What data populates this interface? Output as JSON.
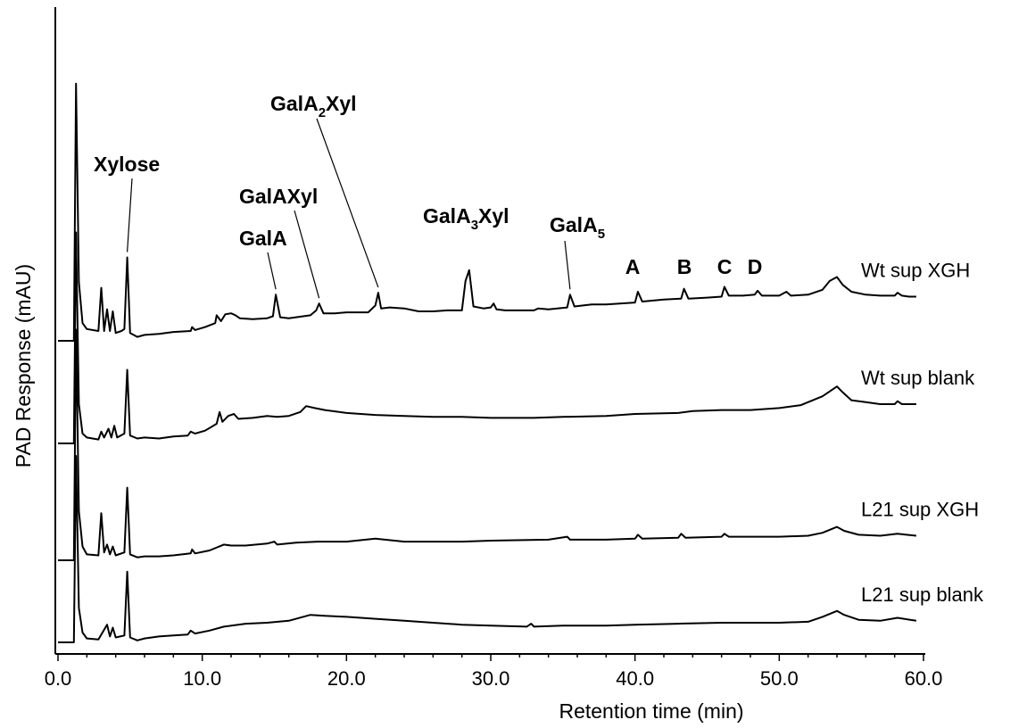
{
  "chart_data": {
    "type": "line",
    "title": "",
    "xlabel": "Retention time (min)",
    "ylabel": "PAD Response (mAU)",
    "xlim": [
      0,
      60
    ],
    "x_ticks": [
      {
        "value": 0,
        "label": "0.0"
      },
      {
        "value": 10,
        "label": "10.0"
      },
      {
        "value": 20,
        "label": "20.0"
      },
      {
        "value": 30,
        "label": "30.0"
      },
      {
        "value": 40,
        "label": "40.0"
      },
      {
        "value": 50,
        "label": "50.0"
      },
      {
        "value": 60,
        "label": "60.0"
      }
    ],
    "series": [
      {
        "name": "Wt sup XGH",
        "color": "#000000",
        "points": [
          [
            0.0,
            0
          ],
          [
            1.1,
            0
          ],
          [
            1.25,
            262
          ],
          [
            1.45,
            60
          ],
          [
            1.7,
            18
          ],
          [
            2.0,
            12
          ],
          [
            2.8,
            10
          ],
          [
            3.0,
            54
          ],
          [
            3.2,
            10
          ],
          [
            3.4,
            32
          ],
          [
            3.6,
            10
          ],
          [
            3.8,
            30
          ],
          [
            4.0,
            8
          ],
          [
            4.4,
            10
          ],
          [
            4.6,
            12
          ],
          [
            4.8,
            85
          ],
          [
            5.0,
            8
          ],
          [
            5.5,
            4
          ],
          [
            6.0,
            6
          ],
          [
            7.0,
            7
          ],
          [
            8.0,
            9
          ],
          [
            9.2,
            10
          ],
          [
            9.3,
            14
          ],
          [
            9.5,
            11
          ],
          [
            10.2,
            14
          ],
          [
            10.9,
            18
          ],
          [
            11.0,
            26
          ],
          [
            11.3,
            20
          ],
          [
            11.6,
            27
          ],
          [
            12.0,
            28
          ],
          [
            12.3,
            26
          ],
          [
            12.6,
            23
          ],
          [
            13.5,
            22
          ],
          [
            14.5,
            23
          ],
          [
            14.9,
            25
          ],
          [
            15.1,
            47
          ],
          [
            15.4,
            24
          ],
          [
            16.0,
            23
          ],
          [
            16.5,
            24
          ],
          [
            17.5,
            26
          ],
          [
            17.9,
            31
          ],
          [
            18.1,
            38
          ],
          [
            18.4,
            28
          ],
          [
            19.2,
            28
          ],
          [
            20.0,
            29
          ],
          [
            21.5,
            29
          ],
          [
            22.0,
            36
          ],
          [
            22.2,
            49
          ],
          [
            22.4,
            33
          ],
          [
            23.0,
            34
          ],
          [
            24.0,
            33
          ],
          [
            25.0,
            30
          ],
          [
            26.0,
            30
          ],
          [
            27.0,
            31
          ],
          [
            28.0,
            31
          ],
          [
            28.25,
            61
          ],
          [
            28.5,
            72
          ],
          [
            28.8,
            35
          ],
          [
            29.5,
            33
          ],
          [
            30.0,
            34
          ],
          [
            30.2,
            38
          ],
          [
            30.4,
            32
          ],
          [
            31.0,
            31
          ],
          [
            32.0,
            31
          ],
          [
            33.0,
            31
          ],
          [
            33.3,
            33
          ],
          [
            34.0,
            32
          ],
          [
            35.3,
            34
          ],
          [
            35.5,
            47
          ],
          [
            35.8,
            35
          ],
          [
            37.0,
            37
          ],
          [
            38.0,
            37
          ],
          [
            40.0,
            39
          ],
          [
            40.2,
            50
          ],
          [
            40.5,
            40
          ],
          [
            42.0,
            42
          ],
          [
            43.2,
            43
          ],
          [
            43.4,
            53
          ],
          [
            43.7,
            43
          ],
          [
            45.0,
            44
          ],
          [
            46.0,
            45
          ],
          [
            46.2,
            55
          ],
          [
            46.5,
            46
          ],
          [
            47.5,
            46
          ],
          [
            48.3,
            47
          ],
          [
            48.5,
            51
          ],
          [
            48.8,
            46
          ],
          [
            50.0,
            46
          ],
          [
            50.5,
            50
          ],
          [
            50.8,
            46
          ],
          [
            52.0,
            47
          ],
          [
            53.0,
            52
          ],
          [
            53.5,
            61
          ],
          [
            54.0,
            65
          ],
          [
            54.4,
            57
          ],
          [
            55.0,
            50
          ],
          [
            56.0,
            47
          ],
          [
            57.0,
            46
          ],
          [
            58.0,
            46
          ],
          [
            58.2,
            49
          ],
          [
            58.5,
            46
          ],
          [
            59.0,
            45
          ],
          [
            59.5,
            45
          ]
        ]
      },
      {
        "name": "Wt sup blank",
        "color": "#000000",
        "points": [
          [
            0.0,
            0
          ],
          [
            1.1,
            0
          ],
          [
            1.25,
            215
          ],
          [
            1.45,
            40
          ],
          [
            1.7,
            10
          ],
          [
            2.0,
            6
          ],
          [
            2.8,
            4
          ],
          [
            3.0,
            12
          ],
          [
            3.2,
            6
          ],
          [
            3.5,
            15
          ],
          [
            3.7,
            6
          ],
          [
            3.9,
            18
          ],
          [
            4.1,
            6
          ],
          [
            4.6,
            10
          ],
          [
            4.8,
            75
          ],
          [
            5.0,
            8
          ],
          [
            5.5,
            5
          ],
          [
            6.0,
            6
          ],
          [
            7.0,
            5
          ],
          [
            8.0,
            7
          ],
          [
            9.0,
            8
          ],
          [
            9.2,
            12
          ],
          [
            9.5,
            10
          ],
          [
            10.2,
            13
          ],
          [
            11.0,
            20
          ],
          [
            11.2,
            32
          ],
          [
            11.4,
            22
          ],
          [
            11.8,
            28
          ],
          [
            12.2,
            30
          ],
          [
            12.5,
            25
          ],
          [
            13.5,
            26
          ],
          [
            14.5,
            28
          ],
          [
            15.2,
            27
          ],
          [
            16.0,
            28
          ],
          [
            16.8,
            32
          ],
          [
            17.2,
            38
          ],
          [
            17.8,
            36
          ],
          [
            18.5,
            34
          ],
          [
            20.0,
            31
          ],
          [
            22.0,
            29
          ],
          [
            24.0,
            28
          ],
          [
            26.0,
            27
          ],
          [
            28.0,
            27
          ],
          [
            30.0,
            26
          ],
          [
            33.0,
            26
          ],
          [
            35.0,
            27
          ],
          [
            38.0,
            28
          ],
          [
            40.0,
            30
          ],
          [
            43.0,
            31
          ],
          [
            44.0,
            33
          ],
          [
            46.0,
            34
          ],
          [
            48.0,
            34
          ],
          [
            50.0,
            36
          ],
          [
            51.5,
            39
          ],
          [
            53.0,
            48
          ],
          [
            54.0,
            58
          ],
          [
            54.4,
            52
          ],
          [
            55.0,
            44
          ],
          [
            56.0,
            42
          ],
          [
            57.0,
            40
          ],
          [
            58.0,
            40
          ],
          [
            58.2,
            43
          ],
          [
            58.5,
            40
          ],
          [
            59.5,
            40
          ]
        ]
      },
      {
        "name": "L21 sup XGH",
        "color": "#000000",
        "points": [
          [
            0.0,
            0
          ],
          [
            1.1,
            0
          ],
          [
            1.25,
            235
          ],
          [
            1.45,
            50
          ],
          [
            1.7,
            14
          ],
          [
            2.0,
            6
          ],
          [
            2.8,
            5
          ],
          [
            3.0,
            48
          ],
          [
            3.2,
            8
          ],
          [
            3.4,
            16
          ],
          [
            3.6,
            6
          ],
          [
            3.8,
            14
          ],
          [
            4.0,
            5
          ],
          [
            4.6,
            8
          ],
          [
            4.8,
            74
          ],
          [
            5.0,
            6
          ],
          [
            5.5,
            3
          ],
          [
            6.0,
            4
          ],
          [
            7.0,
            4
          ],
          [
            8.0,
            5
          ],
          [
            9.2,
            7
          ],
          [
            9.3,
            11
          ],
          [
            9.5,
            7
          ],
          [
            10.5,
            10
          ],
          [
            11.5,
            16
          ],
          [
            12.0,
            15
          ],
          [
            13.0,
            15
          ],
          [
            14.5,
            17
          ],
          [
            15.0,
            19
          ],
          [
            15.2,
            16
          ],
          [
            16.5,
            18
          ],
          [
            18.0,
            19
          ],
          [
            20.0,
            19
          ],
          [
            22.0,
            22
          ],
          [
            24.0,
            19
          ],
          [
            28.0,
            19
          ],
          [
            30.0,
            20
          ],
          [
            34.0,
            21
          ],
          [
            35.3,
            24
          ],
          [
            35.5,
            21
          ],
          [
            38.0,
            21
          ],
          [
            40.0,
            22
          ],
          [
            40.2,
            26
          ],
          [
            40.5,
            22
          ],
          [
            43.0,
            23
          ],
          [
            43.2,
            27
          ],
          [
            43.5,
            23
          ],
          [
            46.0,
            24
          ],
          [
            46.2,
            27
          ],
          [
            46.5,
            24
          ],
          [
            48.0,
            24
          ],
          [
            50.0,
            24
          ],
          [
            52.0,
            25
          ],
          [
            53.0,
            28
          ],
          [
            54.0,
            34
          ],
          [
            54.5,
            30
          ],
          [
            55.5,
            26
          ],
          [
            57.0,
            25
          ],
          [
            58.2,
            27
          ],
          [
            59.5,
            25
          ]
        ]
      },
      {
        "name": "L21 sup blank",
        "color": "#000000",
        "points": [
          [
            0.0,
            0
          ],
          [
            1.1,
            0
          ],
          [
            1.25,
            190
          ],
          [
            1.45,
            35
          ],
          [
            1.7,
            10
          ],
          [
            2.0,
            4
          ],
          [
            2.8,
            3
          ],
          [
            3.4,
            18
          ],
          [
            3.6,
            6
          ],
          [
            3.8,
            15
          ],
          [
            4.0,
            5
          ],
          [
            4.6,
            7
          ],
          [
            4.8,
            72
          ],
          [
            5.0,
            5
          ],
          [
            5.5,
            2
          ],
          [
            6.0,
            4
          ],
          [
            7.0,
            6
          ],
          [
            8.0,
            7
          ],
          [
            9.0,
            8
          ],
          [
            9.2,
            12
          ],
          [
            9.5,
            9
          ],
          [
            10.5,
            12
          ],
          [
            11.5,
            16
          ],
          [
            13.0,
            19
          ],
          [
            14.5,
            20
          ],
          [
            16.0,
            22
          ],
          [
            17.5,
            28
          ],
          [
            18.5,
            27
          ],
          [
            20.0,
            26
          ],
          [
            22.0,
            24
          ],
          [
            24.0,
            22
          ],
          [
            26.0,
            20
          ],
          [
            28.0,
            18
          ],
          [
            30.0,
            17
          ],
          [
            32.5,
            16
          ],
          [
            32.8,
            19
          ],
          [
            33.0,
            16
          ],
          [
            35.0,
            17
          ],
          [
            38.0,
            17
          ],
          [
            40.0,
            18
          ],
          [
            43.0,
            19
          ],
          [
            46.0,
            20
          ],
          [
            48.0,
            20
          ],
          [
            50.0,
            20
          ],
          [
            52.0,
            21
          ],
          [
            53.0,
            26
          ],
          [
            54.0,
            32
          ],
          [
            54.5,
            28
          ],
          [
            55.5,
            23
          ],
          [
            57.0,
            22
          ],
          [
            58.2,
            25
          ],
          [
            59.5,
            22
          ]
        ]
      }
    ],
    "annotations": [
      {
        "series": 0,
        "x": 4.8,
        "label": "Xylose"
      },
      {
        "series": 0,
        "x": 15.1,
        "label": "GalA"
      },
      {
        "series": 0,
        "x": 18.1,
        "label": "GalAXyl"
      },
      {
        "series": 0,
        "x": 22.2,
        "label": "GalA",
        "sub": "2",
        "suffix": "Xyl"
      },
      {
        "series": 0,
        "x": 28.5,
        "label": "GalA",
        "sub": "3",
        "suffix": "Xyl"
      },
      {
        "series": 0,
        "x": 35.5,
        "label": "GalA",
        "sub": "5",
        "suffix": ""
      },
      {
        "series": 0,
        "x": 40.2,
        "label": "A"
      },
      {
        "series": 0,
        "x": 43.4,
        "label": "B"
      },
      {
        "series": 0,
        "x": 46.2,
        "label": "C"
      },
      {
        "series": 0,
        "x": 48.5,
        "label": "D"
      }
    ],
    "grid": false,
    "legend": "series labels at right end of each trace"
  }
}
